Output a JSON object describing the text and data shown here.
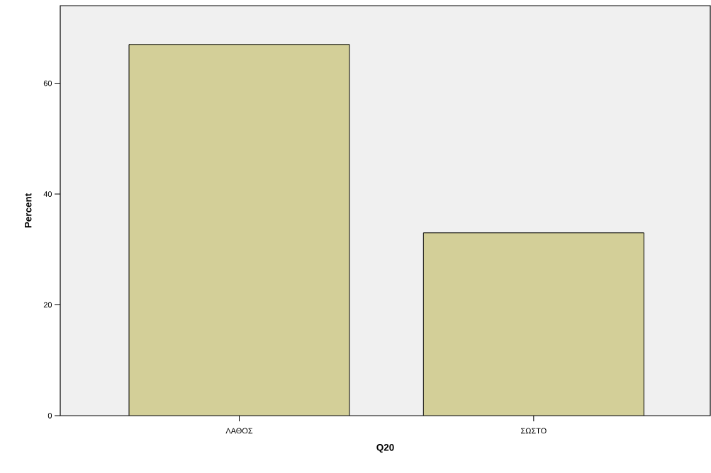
{
  "chart_data": {
    "type": "bar",
    "xlabel": "Q20",
    "ylabel": "Percent",
    "categories": [
      "ΛΑΘΟΣ",
      "ΣΩΣΤΟ"
    ],
    "values": [
      67,
      33
    ],
    "color": "#d3cf98",
    "ylim": [
      0,
      74
    ],
    "yticks": [
      0,
      20,
      40,
      60
    ]
  }
}
